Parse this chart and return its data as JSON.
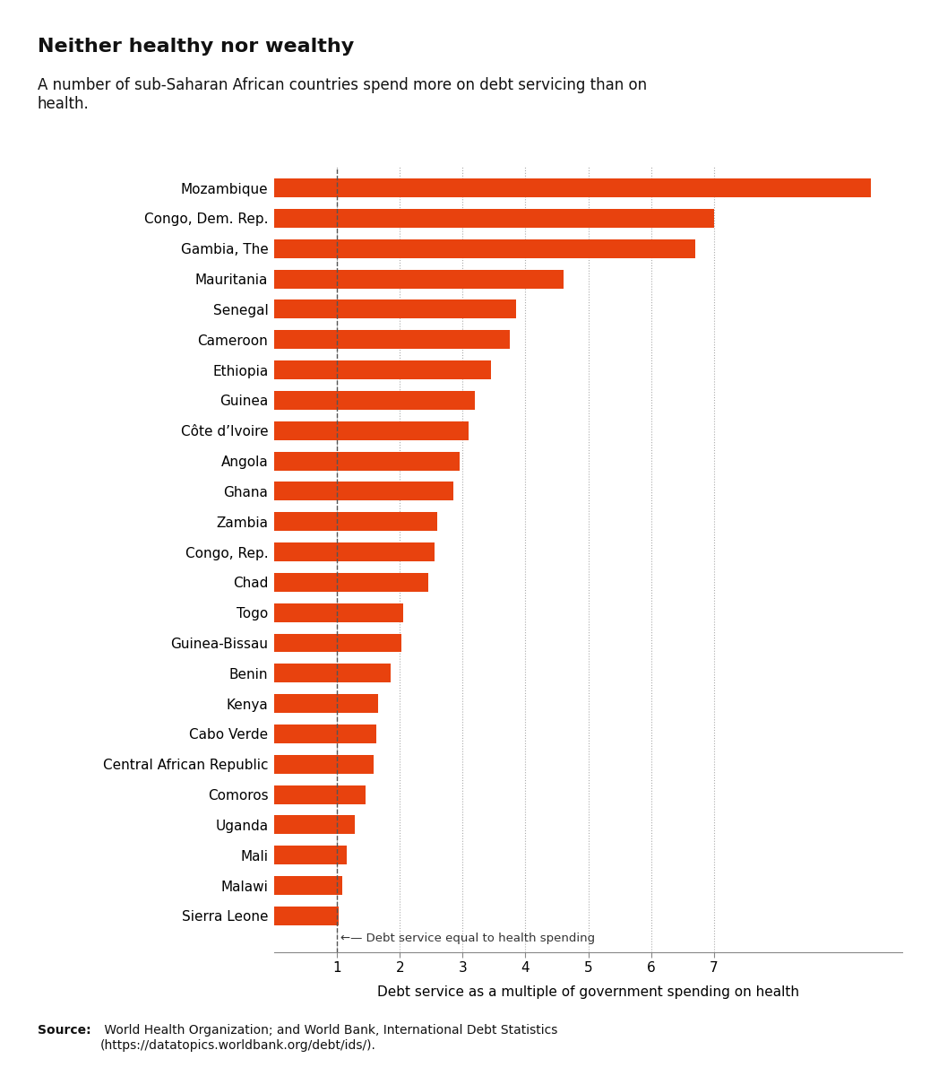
{
  "title": "Neither healthy nor wealthy",
  "subtitle": "A number of sub-Saharan African countries spend more on debt servicing than on\nhealth.",
  "xlabel": "Debt service as a multiple of government spending on health",
  "bar_color": "#E8420E",
  "annotation_text": "←— Debt service equal to health spending",
  "source_bold": "Source:",
  "source_normal": " World Health Organization; and World Bank, International Debt Statistics\n(https://datatopics.worldbank.org/debt/ids/).",
  "countries": [
    "Mozambique",
    "Congo, Dem. Rep.",
    "Gambia, The",
    "Mauritania",
    "Senegal",
    "Cameroon",
    "Ethiopia",
    "Guinea",
    "Côte d’Ivoire",
    "Angola",
    "Ghana",
    "Zambia",
    "Congo, Rep.",
    "Chad",
    "Togo",
    "Guinea-Bissau",
    "Benin",
    "Kenya",
    "Cabo Verde",
    "Central African Republic",
    "Comoros",
    "Uganda",
    "Mali",
    "Malawi",
    "Sierra Leone"
  ],
  "values": [
    9.5,
    7.0,
    6.7,
    4.6,
    3.85,
    3.75,
    3.45,
    3.2,
    3.1,
    2.95,
    2.85,
    2.6,
    2.55,
    2.45,
    2.05,
    2.02,
    1.85,
    1.65,
    1.62,
    1.58,
    1.45,
    1.28,
    1.15,
    1.08,
    1.02
  ],
  "xlim": [
    0,
    10
  ],
  "xticks": [
    1,
    2,
    3,
    4,
    5,
    6,
    7
  ],
  "vline_x": 1.0,
  "background_color": "#FFFFFF",
  "title_fontsize": 16,
  "subtitle_fontsize": 12,
  "label_fontsize": 11,
  "tick_fontsize": 11,
  "source_fontsize": 10,
  "annotation_fontsize": 9.5
}
